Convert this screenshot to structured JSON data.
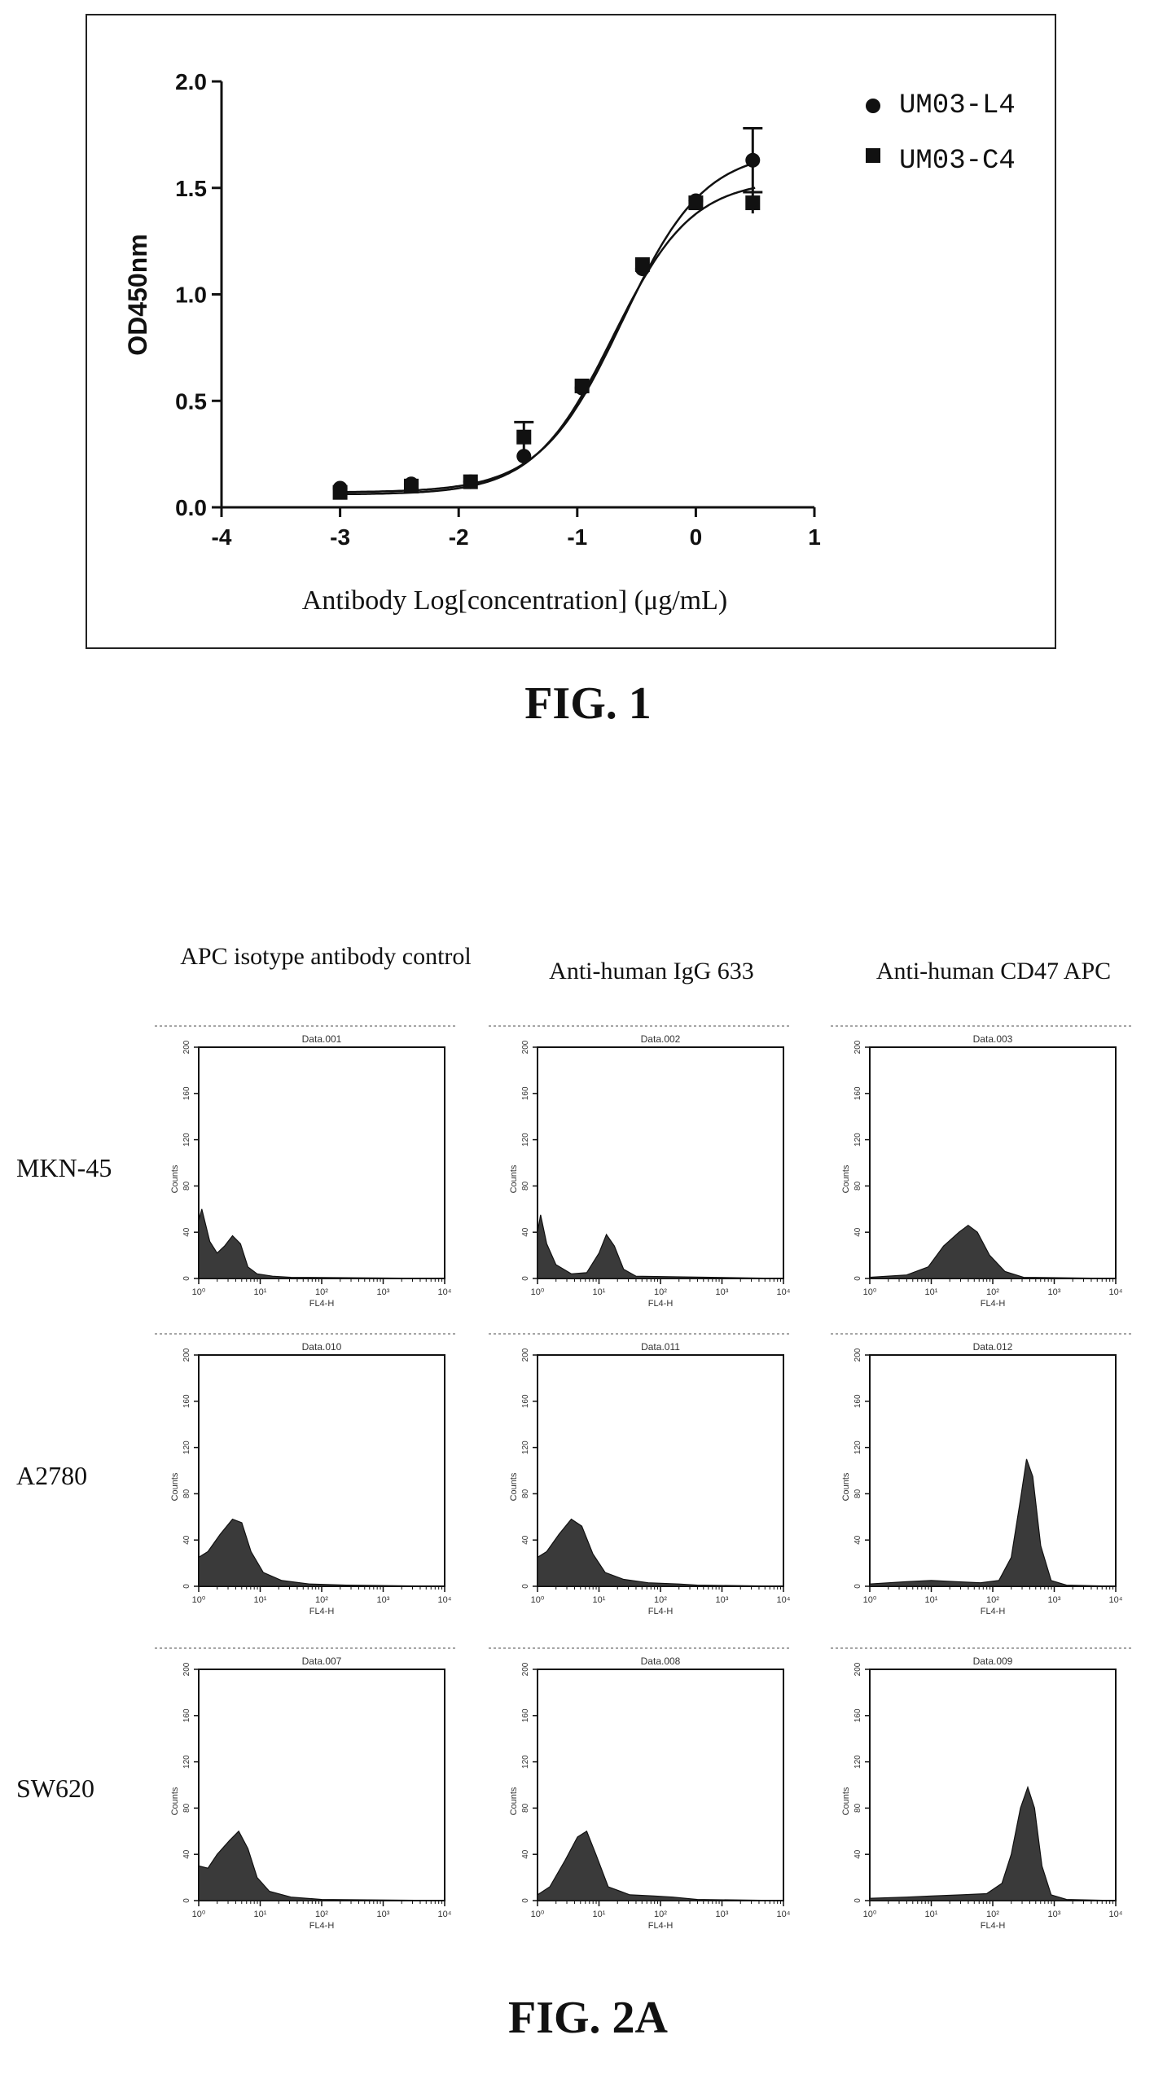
{
  "fig1": {
    "caption": "FIG. 1",
    "chart_data": {
      "type": "scatter",
      "title": "",
      "xlabel": "Antibody Log[concentration] (μg/mL)",
      "ylabel": "OD450nm",
      "xlim": [
        -4,
        1
      ],
      "ylim": [
        0,
        2.0
      ],
      "xticks": [
        "-4",
        "-3",
        "-2",
        "-1",
        "0",
        "1"
      ],
      "yticks": [
        "0.0",
        "0.5",
        "1.0",
        "1.5",
        "2.0"
      ],
      "legend_position": "top-right",
      "grid": false,
      "series": [
        {
          "name": "UM03-L4",
          "marker": "circle",
          "x": [
            -3.0,
            -2.4,
            -1.9,
            -1.45,
            -0.96,
            -0.45,
            0.0,
            0.48
          ],
          "y": [
            0.09,
            0.11,
            0.12,
            0.24,
            0.56,
            1.12,
            1.44,
            1.63
          ],
          "err": [
            0.01,
            0.01,
            0.01,
            0.02,
            0.02,
            0.02,
            0.02,
            0.15
          ],
          "fit": {
            "bottom": 0.07,
            "top": 1.68,
            "logEC50": -0.62,
            "hill": 1.25
          }
        },
        {
          "name": "UM03-C4",
          "marker": "square",
          "x": [
            -3.0,
            -2.4,
            -1.9,
            -1.45,
            -0.96,
            -0.45,
            0.0,
            0.48
          ],
          "y": [
            0.07,
            0.1,
            0.12,
            0.33,
            0.57,
            1.14,
            1.43,
            1.43
          ],
          "err": [
            0.01,
            0.01,
            0.01,
            0.07,
            0.02,
            0.03,
            0.02,
            0.05
          ],
          "fit": {
            "bottom": 0.06,
            "top": 1.54,
            "logEC50": -0.7,
            "hill": 1.3
          }
        }
      ]
    }
  },
  "fig2a": {
    "caption": "FIG. 2A",
    "columns": [
      "APC isotype antibody control",
      "Anti-human IgG 633",
      "Anti-human CD47 APC"
    ],
    "rows": [
      "MKN-45",
      "A2780",
      "SW620"
    ],
    "panel_axes": {
      "ylabel": "Counts",
      "xlabel": "FL4-H",
      "yticks": [
        "0",
        "40",
        "80",
        "120",
        "160",
        "200"
      ],
      "ylim": [
        0,
        200
      ],
      "xticks": [
        "10⁰",
        "10¹",
        "10²",
        "10³",
        "10⁴"
      ],
      "xlim_log10": [
        0,
        4
      ]
    },
    "panels": [
      {
        "title": "Data.001",
        "row": 0,
        "col": 0,
        "hist": [
          [
            0,
            50
          ],
          [
            0.05,
            60
          ],
          [
            0.18,
            32
          ],
          [
            0.3,
            22
          ],
          [
            0.42,
            28
          ],
          [
            0.55,
            37
          ],
          [
            0.68,
            30
          ],
          [
            0.8,
            10
          ],
          [
            0.95,
            4
          ],
          [
            1.2,
            2
          ],
          [
            1.5,
            1
          ],
          [
            4,
            0
          ]
        ]
      },
      {
        "title": "Data.002",
        "row": 0,
        "col": 1,
        "hist": [
          [
            0,
            40
          ],
          [
            0.05,
            55
          ],
          [
            0.15,
            30
          ],
          [
            0.3,
            12
          ],
          [
            0.55,
            4
          ],
          [
            0.8,
            5
          ],
          [
            1.0,
            22
          ],
          [
            1.12,
            38
          ],
          [
            1.25,
            28
          ],
          [
            1.4,
            8
          ],
          [
            1.6,
            2
          ],
          [
            4,
            0
          ]
        ]
      },
      {
        "title": "Data.003",
        "row": 0,
        "col": 2,
        "hist": [
          [
            0,
            1
          ],
          [
            0.6,
            3
          ],
          [
            0.95,
            10
          ],
          [
            1.2,
            28
          ],
          [
            1.45,
            40
          ],
          [
            1.6,
            46
          ],
          [
            1.75,
            40
          ],
          [
            1.95,
            20
          ],
          [
            2.2,
            6
          ],
          [
            2.5,
            1
          ],
          [
            4,
            0
          ]
        ]
      },
      {
        "title": "Data.010",
        "row": 1,
        "col": 0,
        "hist": [
          [
            0,
            25
          ],
          [
            0.15,
            30
          ],
          [
            0.35,
            45
          ],
          [
            0.55,
            58
          ],
          [
            0.7,
            55
          ],
          [
            0.85,
            30
          ],
          [
            1.05,
            12
          ],
          [
            1.35,
            5
          ],
          [
            1.8,
            2
          ],
          [
            2.4,
            1
          ],
          [
            4,
            0
          ]
        ]
      },
      {
        "title": "Data.011",
        "row": 1,
        "col": 1,
        "hist": [
          [
            0,
            25
          ],
          [
            0.15,
            30
          ],
          [
            0.35,
            45
          ],
          [
            0.55,
            58
          ],
          [
            0.72,
            52
          ],
          [
            0.9,
            28
          ],
          [
            1.1,
            12
          ],
          [
            1.4,
            6
          ],
          [
            1.8,
            3
          ],
          [
            2.3,
            2
          ],
          [
            2.6,
            1
          ],
          [
            4,
            0
          ]
        ]
      },
      {
        "title": "Data.012",
        "row": 1,
        "col": 2,
        "hist": [
          [
            0,
            2
          ],
          [
            0.6,
            4
          ],
          [
            1.0,
            5
          ],
          [
            1.4,
            4
          ],
          [
            1.8,
            3
          ],
          [
            2.1,
            5
          ],
          [
            2.3,
            25
          ],
          [
            2.45,
            75
          ],
          [
            2.55,
            110
          ],
          [
            2.65,
            95
          ],
          [
            2.78,
            35
          ],
          [
            2.95,
            5
          ],
          [
            3.2,
            1
          ],
          [
            4,
            0
          ]
        ]
      },
      {
        "title": "Data.007",
        "row": 2,
        "col": 0,
        "hist": [
          [
            0,
            30
          ],
          [
            0.15,
            28
          ],
          [
            0.3,
            40
          ],
          [
            0.5,
            52
          ],
          [
            0.65,
            60
          ],
          [
            0.8,
            45
          ],
          [
            0.95,
            20
          ],
          [
            1.15,
            8
          ],
          [
            1.5,
            3
          ],
          [
            2.0,
            1
          ],
          [
            4,
            0
          ]
        ]
      },
      {
        "title": "Data.008",
        "row": 2,
        "col": 1,
        "hist": [
          [
            0,
            5
          ],
          [
            0.2,
            12
          ],
          [
            0.45,
            35
          ],
          [
            0.65,
            55
          ],
          [
            0.8,
            60
          ],
          [
            0.95,
            40
          ],
          [
            1.15,
            12
          ],
          [
            1.5,
            5
          ],
          [
            1.9,
            4
          ],
          [
            2.2,
            3
          ],
          [
            2.6,
            1
          ],
          [
            4,
            0
          ]
        ]
      },
      {
        "title": "Data.009",
        "row": 2,
        "col": 2,
        "hist": [
          [
            0,
            2
          ],
          [
            0.6,
            3
          ],
          [
            1.0,
            4
          ],
          [
            1.5,
            5
          ],
          [
            1.9,
            6
          ],
          [
            2.15,
            15
          ],
          [
            2.3,
            40
          ],
          [
            2.45,
            80
          ],
          [
            2.57,
            98
          ],
          [
            2.68,
            80
          ],
          [
            2.8,
            30
          ],
          [
            2.95,
            5
          ],
          [
            3.2,
            1
          ],
          [
            4,
            0
          ]
        ]
      }
    ]
  }
}
